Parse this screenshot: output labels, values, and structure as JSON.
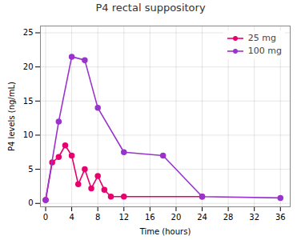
{
  "chart_data": {
    "type": "line",
    "title": "P4 rectal suppository",
    "xlabel": "Time (hours)",
    "ylabel": "P4 levels (ng/mL)",
    "series": [
      {
        "name": "25 mg",
        "color": "#e8006f",
        "marker": "circle",
        "x": [
          0,
          1,
          2,
          3,
          4,
          5,
          6,
          7,
          8,
          9,
          10,
          12,
          24
        ],
        "values": [
          0.5,
          6.0,
          6.8,
          8.5,
          7.0,
          2.8,
          5.0,
          2.2,
          4.0,
          2.0,
          1.0,
          1.0,
          1.0
        ]
      },
      {
        "name": "100 mg",
        "color": "#9933cc",
        "marker": "circle",
        "x": [
          0,
          2,
          4,
          6,
          8,
          12,
          18,
          24,
          36
        ],
        "values": [
          0.5,
          12.0,
          21.5,
          21.0,
          14.0,
          7.5,
          7.0,
          1.0,
          0.8
        ]
      }
    ],
    "xlim": [
      -0.8,
      37.5
    ],
    "ylim": [
      -0.5,
      26
    ],
    "xticks": [
      0,
      4,
      8,
      12,
      16,
      20,
      24,
      28,
      32,
      36
    ],
    "yticks": [
      0,
      5,
      10,
      15,
      20,
      25
    ],
    "grid": true,
    "legend": "upper right"
  }
}
